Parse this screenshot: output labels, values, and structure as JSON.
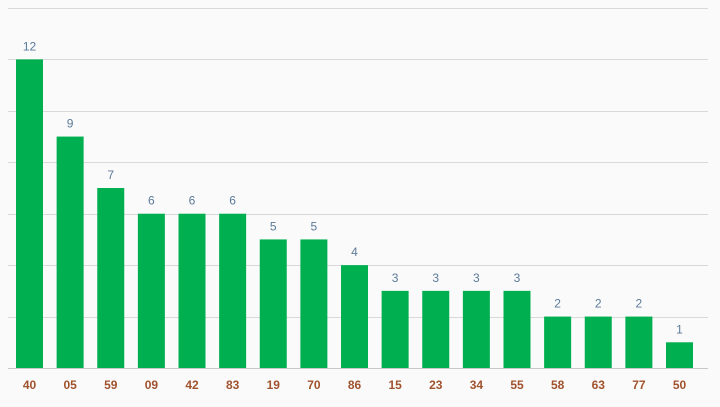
{
  "colors": {
    "bar": "#00b050",
    "value_label": "#5b7a99",
    "tick_label": "#a0522d",
    "background": "#fafafa",
    "grid": "#d9d9d9"
  },
  "chart_data": {
    "type": "bar",
    "title": "",
    "xlabel": "",
    "ylabel": "",
    "categories": [
      "40",
      "05",
      "59",
      "09",
      "42",
      "83",
      "19",
      "70",
      "86",
      "15",
      "23",
      "34",
      "55",
      "58",
      "63",
      "77",
      "50"
    ],
    "values": [
      12,
      9,
      7,
      6,
      6,
      6,
      5,
      5,
      4,
      3,
      3,
      3,
      3,
      2,
      2,
      2,
      1
    ],
    "ylim": [
      0,
      14
    ],
    "grid": true,
    "legend": "none",
    "data_labels": true
  }
}
